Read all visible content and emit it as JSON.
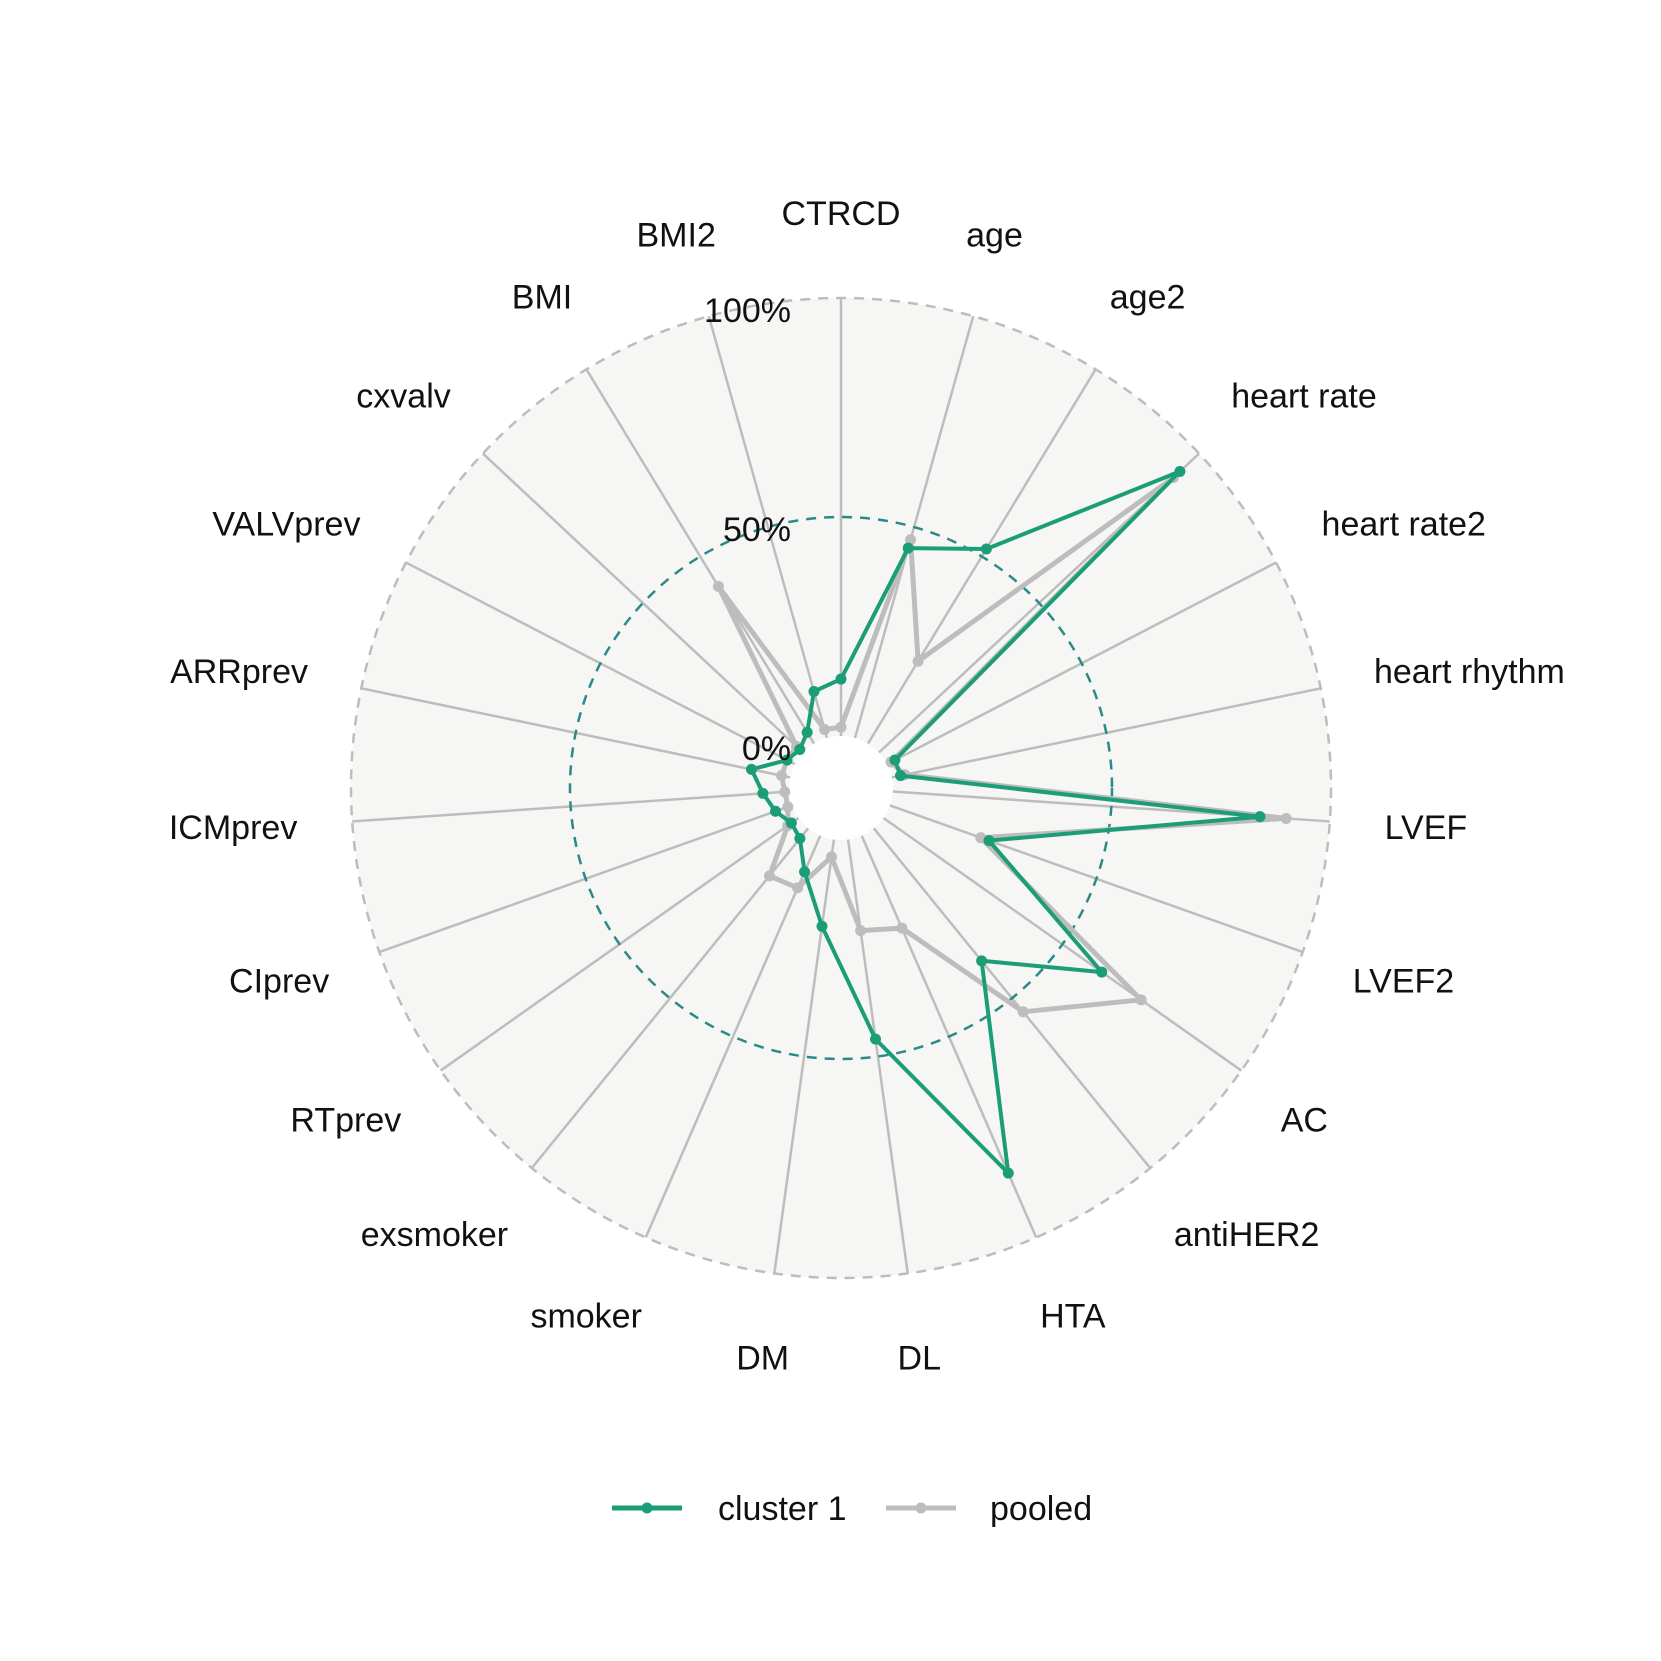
{
  "chart_data": {
    "type": "radar",
    "title": "",
    "axes": [
      "CTRCD",
      "age",
      "age2",
      "heart rate",
      "heart rate2",
      "heart rhythm",
      "LVEF",
      "LVEF2",
      "AC",
      "antiHER2",
      "HTA",
      "DL",
      "DM",
      "smoker",
      "exsmoker",
      "RTprev",
      "CIprev",
      "ICMprev",
      "ARRprev",
      "VALVprev",
      "cxvalv",
      "BMI",
      "BMI2"
    ],
    "grid_labels": [
      "0%",
      "50%",
      "100%"
    ],
    "range": [
      0,
      100
    ],
    "grid": true,
    "legend_position": "bottom",
    "series": [
      {
        "name": "cluster 1",
        "color": "#1b9e77",
        "values": [
          13,
          45,
          52,
          94,
          2,
          2,
          84,
          24,
          61,
          39,
          84,
          46,
          20,
          9,
          3,
          2,
          4,
          6,
          9,
          2,
          1,
          3,
          11
        ]
      },
      {
        "name": "pooled",
        "color": "#bdbdbd",
        "values": [
          2,
          47,
          22,
          92,
          1,
          3,
          90,
          22,
          72,
          54,
          23,
          21,
          4,
          13,
          14,
          3,
          1,
          1,
          2,
          2,
          2,
          42,
          2
        ]
      }
    ]
  }
}
